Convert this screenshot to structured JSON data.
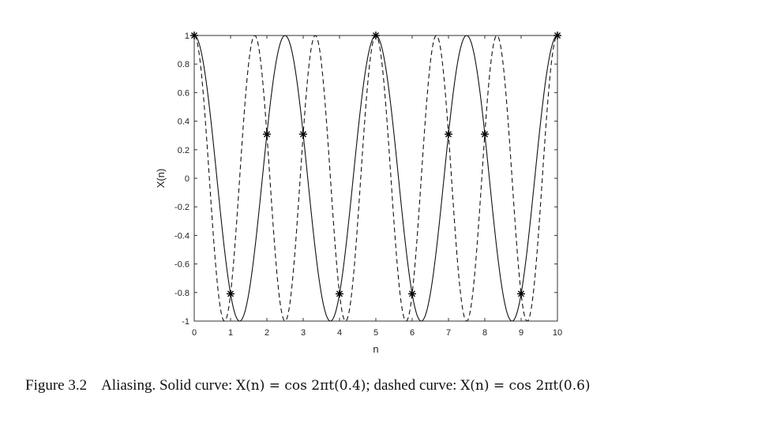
{
  "chart_data": {
    "type": "line",
    "xlabel": "n",
    "ylabel": "X(n)",
    "xlim": [
      0,
      10
    ],
    "ylim": [
      -1,
      1
    ],
    "xticks": [
      "0",
      "1",
      "2",
      "3",
      "4",
      "5",
      "6",
      "7",
      "8",
      "9",
      "10"
    ],
    "yticks": [
      "1",
      "0.8",
      "0.6",
      "0.4",
      "0.2",
      "0",
      "-0.2",
      "-0.4",
      "-0.6",
      "-0.8",
      "-1"
    ],
    "grid": false,
    "series": [
      {
        "style": "solid",
        "frequency": 0.4
      },
      {
        "style": "dashed",
        "frequency": 0.6
      }
    ],
    "samples": {
      "n": [
        0,
        1,
        2,
        3,
        4,
        5,
        6,
        7,
        8,
        9,
        10
      ],
      "values": [
        1,
        -0.809,
        0.309,
        0.309,
        -0.809,
        1,
        -0.809,
        0.309,
        0.309,
        -0.809,
        1
      ],
      "marker": "asterisk"
    }
  },
  "caption": {
    "figure": "Figure 3.2",
    "text1": "Aliasing. Solid curve:",
    "eq1": "X(n) = cos 2πt(0.4)",
    "text2": "; dashed curve:",
    "eq2": "X(n) = cos 2πt(0.6)"
  }
}
